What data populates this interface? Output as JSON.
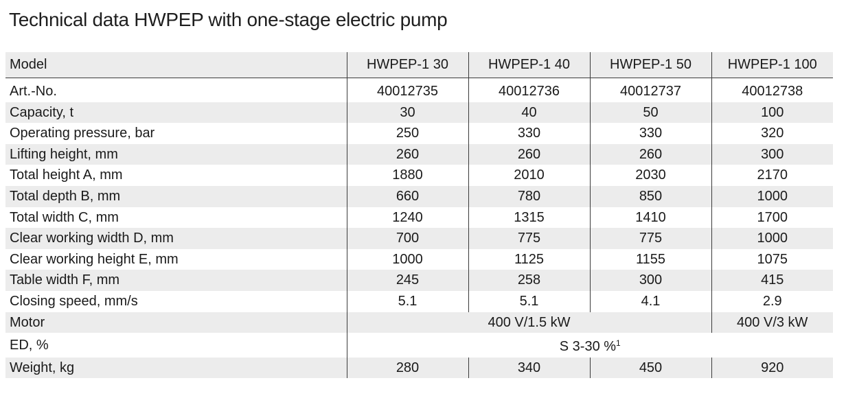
{
  "title": "Technical data HWPEP with one-stage electric pump",
  "table": {
    "header": {
      "label": "Model",
      "models": [
        "HWPEP-1 30",
        "HWPEP-1 40",
        "HWPEP-1 50",
        "HWPEP-1 100"
      ]
    },
    "rows": [
      {
        "label": "Art.-No.",
        "values": [
          "40012735",
          "40012736",
          "40012737",
          "40012738"
        ]
      },
      {
        "label": "Capacity, t",
        "values": [
          "30",
          "40",
          "50",
          "100"
        ]
      },
      {
        "label": "Operating pressure, bar",
        "values": [
          "250",
          "330",
          "330",
          "320"
        ]
      },
      {
        "label": "Lifting height, mm",
        "values": [
          "260",
          "260",
          "260",
          "300"
        ]
      },
      {
        "label": "Total height A, mm",
        "values": [
          "1880",
          "2010",
          "2030",
          "2170"
        ]
      },
      {
        "label": "Total depth B, mm",
        "values": [
          "660",
          "780",
          "850",
          "1000"
        ]
      },
      {
        "label": "Total width C, mm",
        "values": [
          "1240",
          "1315",
          "1410",
          "1700"
        ]
      },
      {
        "label": "Clear working width D, mm",
        "values": [
          "700",
          "775",
          "775",
          "1000"
        ]
      },
      {
        "label": "Clear working height E, mm",
        "values": [
          "1000",
          "1125",
          "1155",
          "1075"
        ]
      },
      {
        "label": "Table width F, mm",
        "values": [
          "245",
          "258",
          "300",
          "415"
        ]
      },
      {
        "label": "Closing speed, mm/s",
        "values": [
          "5.1",
          "5.1",
          "4.1",
          "2.9"
        ]
      }
    ],
    "motor": {
      "label": "Motor",
      "value_1_3": "400 V/1.5 kW",
      "value_4": "400 V/3 kW"
    },
    "ed": {
      "label": "ED, %",
      "value": "S 3-30 %",
      "footnote": "1"
    },
    "weight": {
      "label": "Weight, kg",
      "values": [
        "280",
        "340",
        "450",
        "920"
      ]
    }
  }
}
